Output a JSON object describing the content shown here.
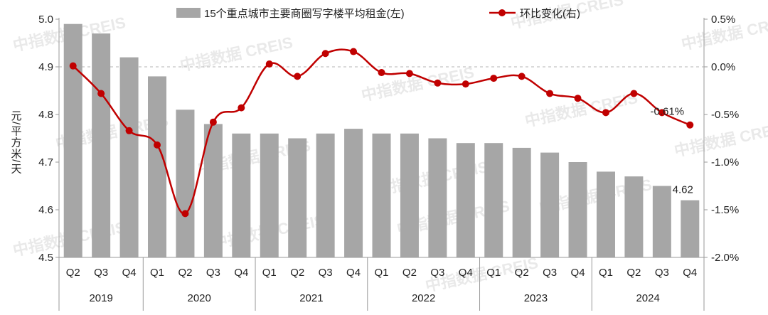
{
  "chart_data": {
    "type": "bar+line",
    "title": "",
    "legend": {
      "placement": "top",
      "bar_label": "15个重点城市主要商圈写字楼平均租金(左)",
      "line_label": "环比变化(右)"
    },
    "ylabel": "元/平方米/天",
    "ylim_left": [
      4.5,
      5.0
    ],
    "yticks_left": [
      "4.5",
      "4.6",
      "4.7",
      "4.8",
      "4.9",
      "5.0"
    ],
    "ylim_right": [
      -2.0,
      0.5
    ],
    "yticks_right": [
      "-2.0%",
      "-1.5%",
      "-1.0%",
      "-0.5%",
      "0.0%",
      "0.5%"
    ],
    "quarters": [
      "Q2",
      "Q3",
      "Q4",
      "Q1",
      "Q2",
      "Q3",
      "Q4",
      "Q1",
      "Q2",
      "Q3",
      "Q4",
      "Q1",
      "Q2",
      "Q3",
      "Q4",
      "Q1",
      "Q2",
      "Q3",
      "Q4",
      "Q1",
      "Q2",
      "Q3",
      "Q4"
    ],
    "years": [
      {
        "label": "2019",
        "count": 3
      },
      {
        "label": "2020",
        "count": 4
      },
      {
        "label": "2021",
        "count": 4
      },
      {
        "label": "2022",
        "count": 4
      },
      {
        "label": "2023",
        "count": 4
      },
      {
        "label": "2024",
        "count": 4
      }
    ],
    "series": [
      {
        "name": "15个重点城市主要商圈写字楼平均租金(左)",
        "type": "bar",
        "axis": "left",
        "color": "#a6a6a6",
        "values": [
          4.99,
          4.97,
          4.92,
          4.88,
          4.81,
          4.78,
          4.76,
          4.76,
          4.75,
          4.76,
          4.77,
          4.76,
          4.76,
          4.75,
          4.74,
          4.74,
          4.73,
          4.72,
          4.7,
          4.68,
          4.67,
          4.65,
          4.62
        ]
      },
      {
        "name": "环比变化(右)",
        "type": "line",
        "axis": "right",
        "color": "#c00000",
        "values": [
          0.01,
          -0.28,
          -0.67,
          -0.82,
          -1.54,
          -0.58,
          -0.43,
          0.03,
          -0.1,
          0.14,
          0.16,
          -0.06,
          -0.07,
          -0.17,
          -0.18,
          -0.12,
          -0.1,
          -0.28,
          -0.33,
          -0.48,
          -0.28,
          -0.48,
          -0.61
        ]
      }
    ],
    "data_labels": [
      {
        "series": 0,
        "index": 22,
        "text": "4.62"
      },
      {
        "series": 1,
        "index": 22,
        "text": "-0.61%"
      }
    ],
    "reference_line": {
      "axis": "right",
      "value": 0.0,
      "style": "dashed"
    },
    "watermark": "中指数据 CREIS"
  }
}
